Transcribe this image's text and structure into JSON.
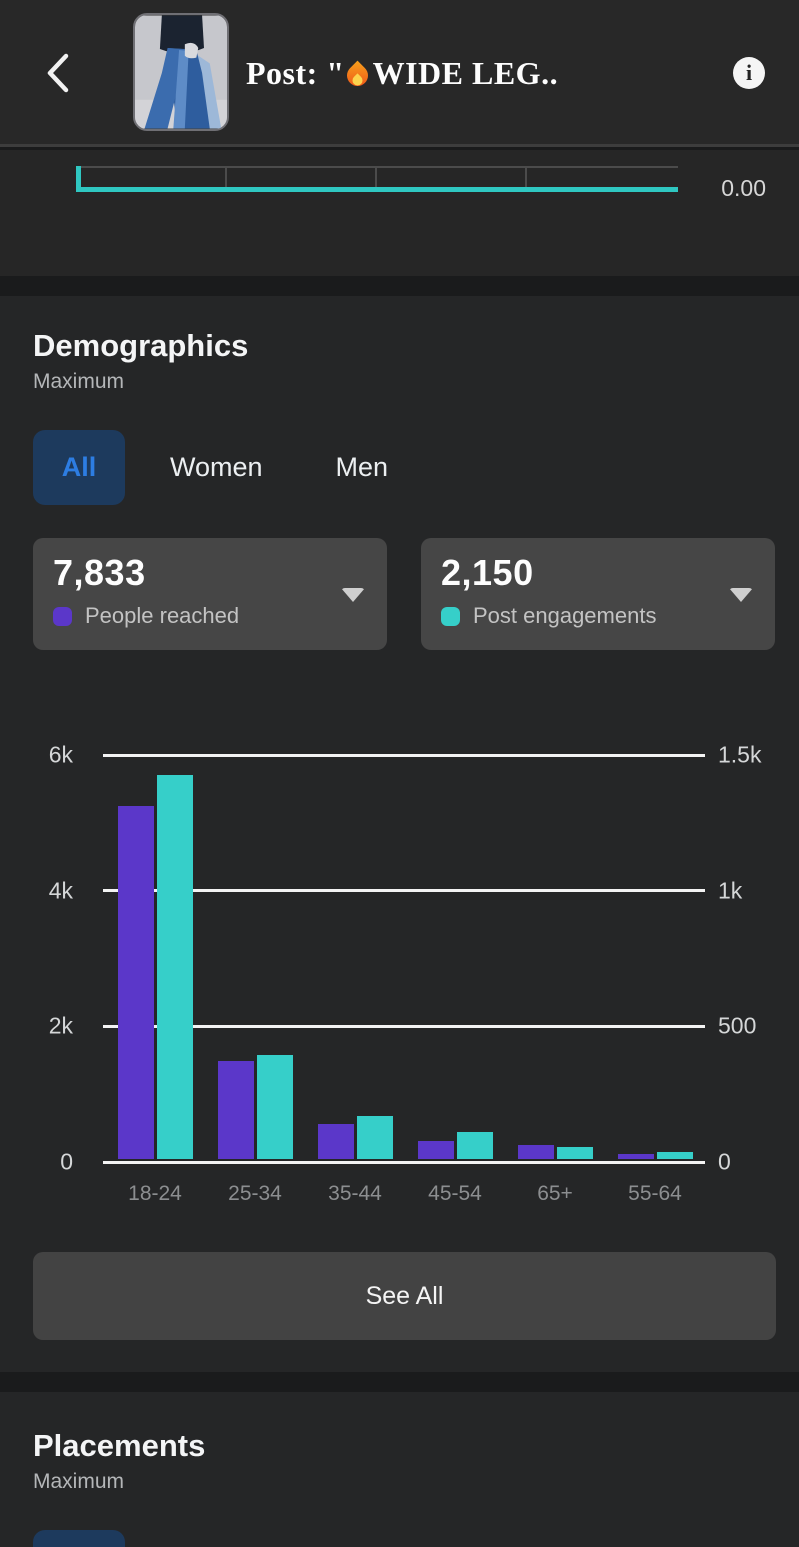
{
  "header": {
    "title_prefix": "Post: \"",
    "title_rest": "WIDE LEG..",
    "icons": {
      "back": "chevron-left-icon",
      "fire": "fire-icon",
      "info": "info-icon"
    }
  },
  "mini_chart": {
    "right_axis_label": "0.00",
    "line_color": "#2fc7c1"
  },
  "demographics": {
    "title": "Demographics",
    "subtitle": "Maximum",
    "tabs": [
      {
        "label": "All",
        "active": true
      },
      {
        "label": "Women",
        "active": false
      },
      {
        "label": "Men",
        "active": false
      }
    ],
    "stats": [
      {
        "value": "7,833",
        "label": "People reached",
        "color": "#5b37c9"
      },
      {
        "value": "2,150",
        "label": "Post engagements",
        "color": "#36cfc9"
      }
    ],
    "see_all_label": "See All"
  },
  "chart_data": {
    "type": "bar",
    "categories": [
      "18-24",
      "25-34",
      "35-44",
      "45-54",
      "65+",
      "55-64"
    ],
    "series": [
      {
        "name": "People reached",
        "axis": "left",
        "color": "#5b37c9",
        "values": [
          5200,
          1450,
          520,
          260,
          210,
          70
        ]
      },
      {
        "name": "Post engagements",
        "axis": "right",
        "color": "#36cfc9",
        "values": [
          1415,
          385,
          160,
          100,
          45,
          25
        ]
      }
    ],
    "left_axis": {
      "ticks": [
        "6k",
        "4k",
        "2k",
        "0"
      ],
      "max": 6000
    },
    "right_axis": {
      "ticks": [
        "1.5k",
        "1k",
        "500",
        "0"
      ],
      "max": 1500
    },
    "grid": true,
    "legend_position": "none"
  },
  "placements": {
    "title": "Placements",
    "subtitle": "Maximum"
  }
}
